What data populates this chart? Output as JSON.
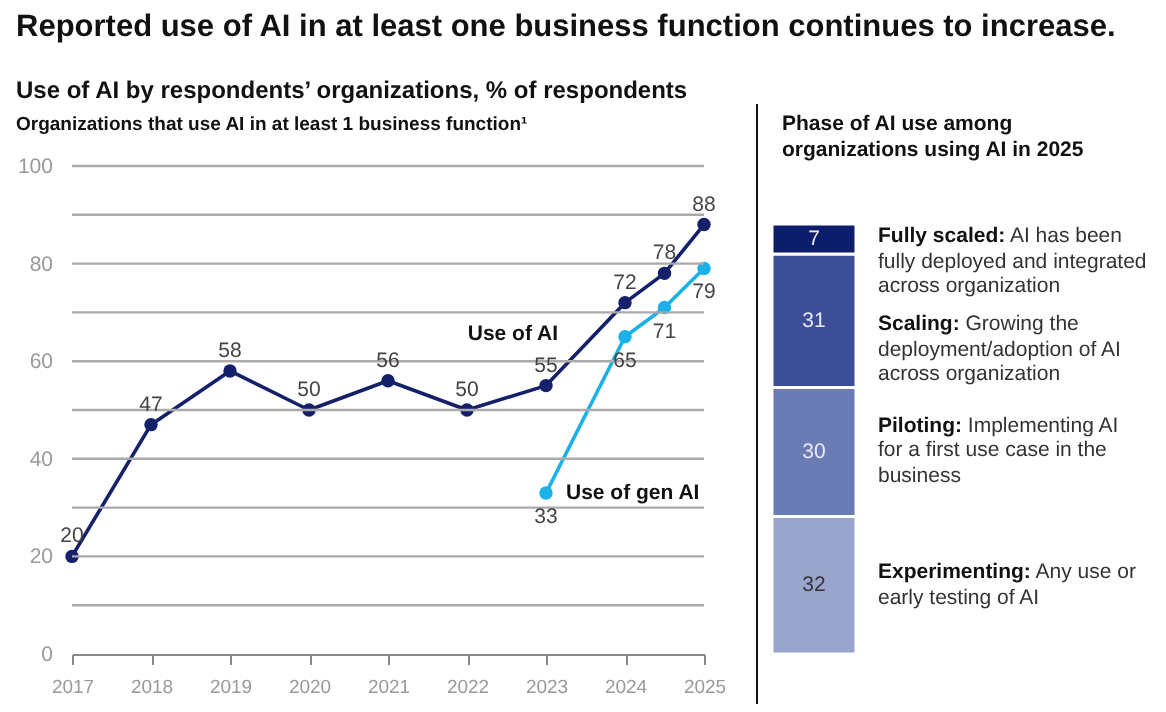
{
  "chart_data": [
    {
      "type": "line",
      "title": "Reported use of AI in at least one business function continues to increase.",
      "subtitle": "Use of AI by respondents’ organizations, % of respondents",
      "ylabel": "Organizations that use AI in at least 1 business function¹",
      "series": [
        {
          "name": "Use of AI",
          "color": "#15206b",
          "x": [
            2017,
            2018,
            2019,
            2020,
            2021,
            2022,
            2023,
            2024,
            2024.5,
            2025
          ],
          "values": [
            20,
            47,
            58,
            50,
            56,
            50,
            55,
            72,
            78,
            88
          ]
        },
        {
          "name": "Use of gen AI",
          "color": "#1ab0ea",
          "x": [
            2023,
            2024,
            2024.5,
            2025
          ],
          "values": [
            33,
            65,
            71,
            79
          ]
        }
      ],
      "xlim": [
        2017,
        2025
      ],
      "xticks": [
        2017,
        2018,
        2019,
        2020,
        2021,
        2022,
        2023,
        2024,
        2025
      ],
      "ylim": [
        0,
        100
      ],
      "yticks": [
        0,
        {
          "value": 10,
          "label": null
        },
        20,
        {
          "value": 30,
          "label": null
        },
        40,
        {
          "value": 50,
          "label": null
        },
        60,
        {
          "value": 70,
          "label": null
        },
        80,
        {
          "value": 90,
          "label": null
        },
        100
      ],
      "grid": "y",
      "marker": "circle",
      "data_labels": true
    },
    {
      "type": "bar",
      "stacked": true,
      "title": "Phase of AI use among organizations using AI in 2025",
      "categories": [
        null
      ],
      "series": [
        {
          "name": "Experimenting:",
          "color": "#9aa5cd",
          "values": [
            32
          ]
        },
        {
          "name": "Piloting:",
          "color": "#6b7bb3",
          "values": [
            30
          ]
        },
        {
          "name": "Scaling:",
          "color": "#3c4e96",
          "values": [
            31
          ]
        },
        {
          "name": "Fully scaled:",
          "color": "#0b1d6b",
          "values": [
            7
          ]
        }
      ],
      "annotations": [
        "Any use or early testing of AI",
        "Implementing AI for a first use case in the business",
        "Growing the deployment/adoption of AI across organization",
        "AI has been fully deployed and integrated across organization"
      ],
      "data_labels": true
    }
  ]
}
